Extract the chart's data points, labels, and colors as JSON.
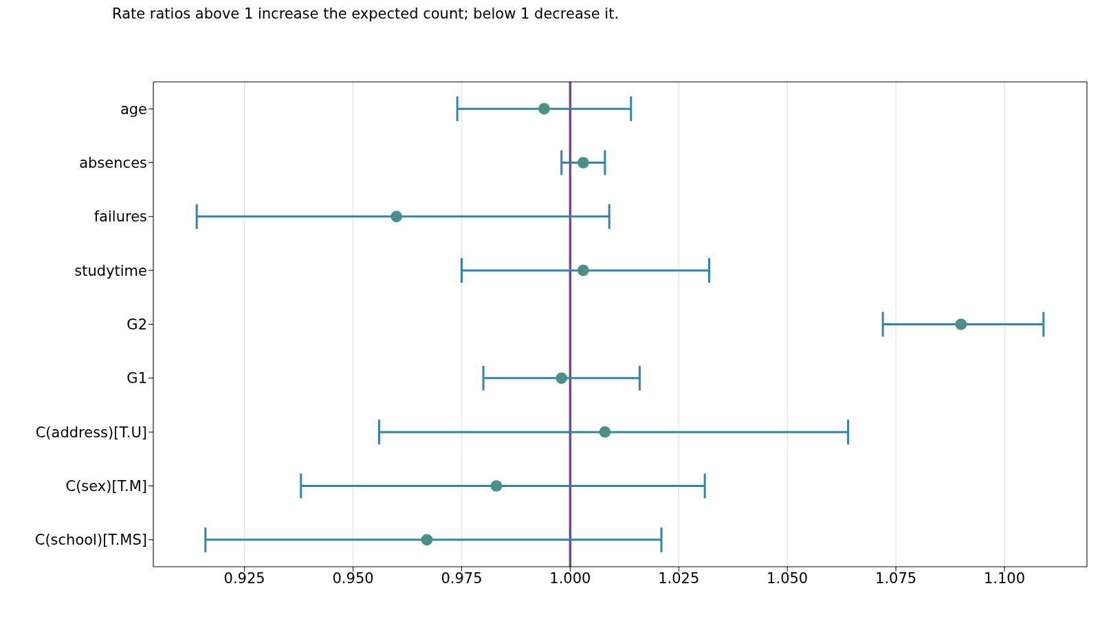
{
  "chart_data": {
    "type": "scatter",
    "subtitle": "Rate ratios above 1 increase the expected count; below 1 decrease it.",
    "categories": [
      "age",
      "absences",
      "failures",
      "studytime",
      "G2",
      "G1",
      "C(address)[T.U]",
      "C(sex)[T.M]",
      "C(school)[T.MS]"
    ],
    "series": [
      {
        "color": "#4a8f8c",
        "values": [
          0.994,
          1.003,
          0.96,
          1.003,
          1.09,
          0.998,
          1.008,
          0.983,
          0.967
        ],
        "errors": [
          [
            0.974,
            1.014
          ],
          [
            0.998,
            1.008
          ],
          [
            0.914,
            1.009
          ],
          [
            0.975,
            1.032
          ],
          [
            1.072,
            1.109
          ],
          [
            0.98,
            1.016
          ],
          [
            0.956,
            1.064
          ],
          [
            0.938,
            1.031
          ],
          [
            0.916,
            1.021
          ]
        ]
      }
    ],
    "xlim": [
      0.904,
      1.119
    ],
    "xticks": [
      {
        "value": 0.925,
        "label": "0.925"
      },
      {
        "value": 0.95,
        "label": "0.950"
      },
      {
        "value": 0.975,
        "label": "0.975"
      },
      {
        "value": 1,
        "label": "1.000"
      },
      {
        "value": 1.025,
        "label": "1.025"
      },
      {
        "value": 1.05,
        "label": "1.050"
      },
      {
        "value": 1.075,
        "label": "1.075"
      },
      {
        "value": 1.1,
        "label": "1.100"
      }
    ],
    "ref_lines": [
      {
        "axis": "x",
        "value": 1,
        "color": "#6c4f80"
      }
    ],
    "grid": "x",
    "marker": "circle",
    "orientation": "horizontal"
  }
}
